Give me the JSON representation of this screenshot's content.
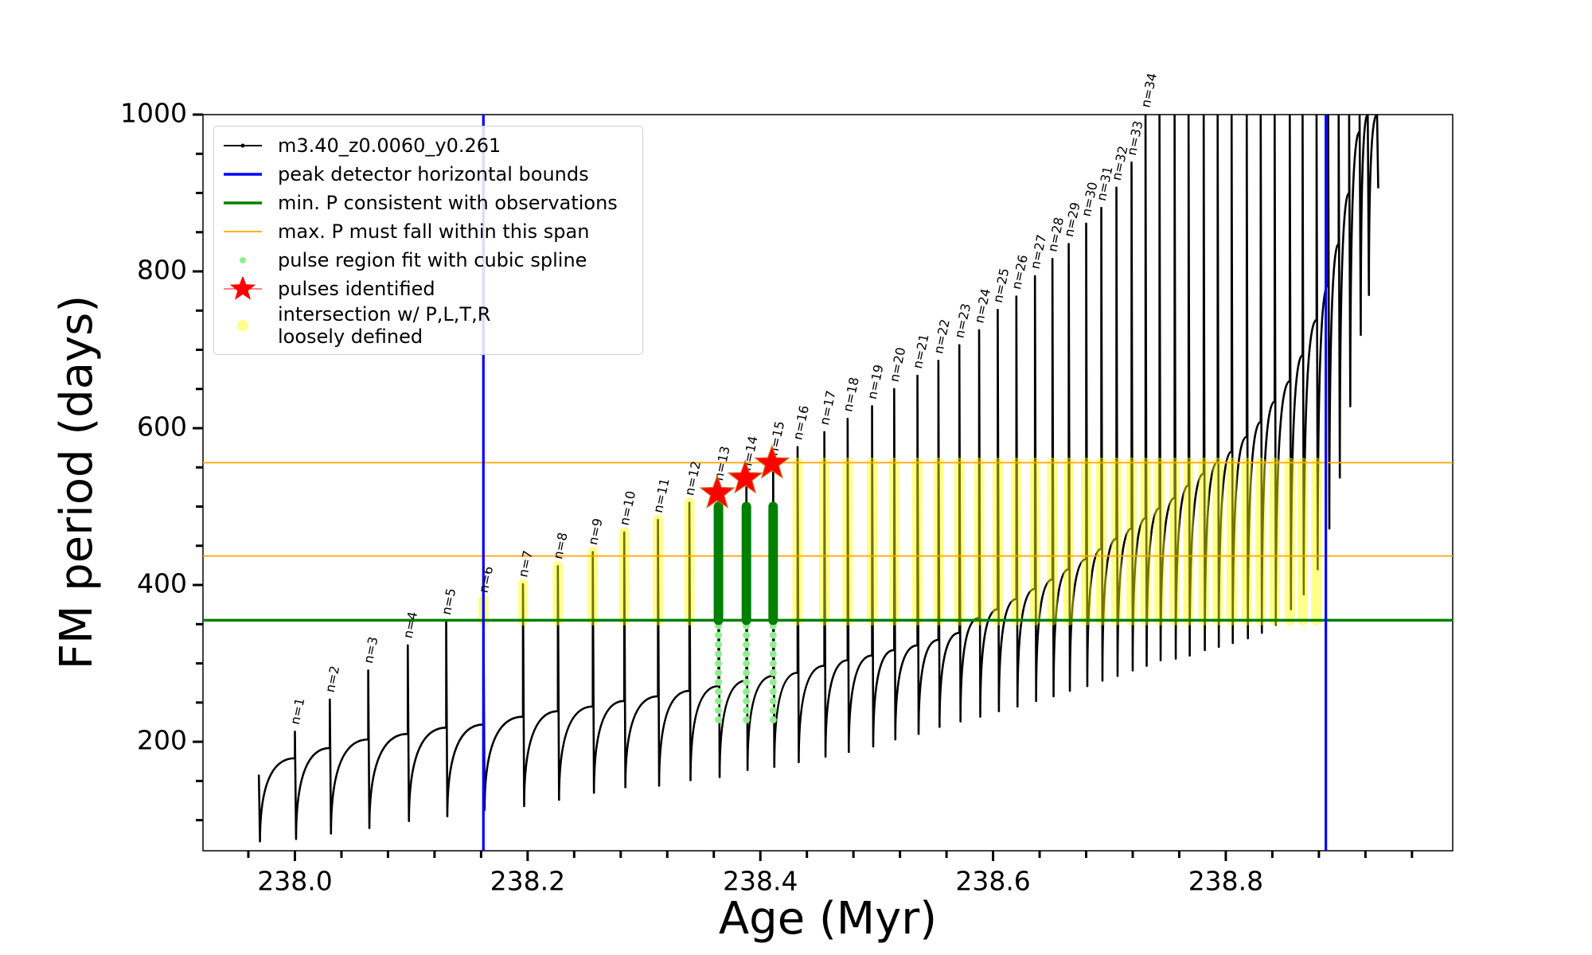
{
  "chart_data": {
    "type": "line",
    "xlabel": "Age (Myr)",
    "ylabel": "FM period (days)",
    "xlim": [
      237.921,
      238.995
    ],
    "ylim": [
      61,
      1000
    ],
    "xticks": [
      {
        "value": 238.0,
        "label": "238.0"
      },
      238.2,
      238.4,
      238.6,
      238.8
    ],
    "yticks": [
      200,
      400,
      600,
      800,
      1000
    ],
    "xminorticks": [
      237.96,
      238.04,
      238.08,
      238.12,
      238.16,
      238.24,
      238.28,
      238.32,
      238.36,
      238.44,
      238.48,
      238.52,
      238.56,
      238.64,
      238.68,
      238.72,
      238.76,
      238.84,
      238.88,
      238.92,
      238.96
    ],
    "yminorticks": [
      100,
      150,
      250,
      300,
      350,
      450,
      500,
      550,
      650,
      700,
      750,
      850,
      900,
      950
    ],
    "legend": "upper left",
    "series": [
      {
        "name": "m3.40_z0.0060_y0.261",
        "type": "line",
        "color": "#000000",
        "x": [
          237.969,
          237.97,
          238.0,
          238.0,
          238.001,
          238.03,
          238.03,
          238.031,
          238.063,
          238.063,
          238.064,
          238.097,
          238.097,
          238.098,
          238.13,
          238.13,
          238.131,
          238.162,
          238.162,
          238.163,
          238.196,
          238.196,
          238.197,
          238.226,
          238.226,
          238.227,
          238.256,
          238.256,
          238.257,
          238.283,
          238.283,
          238.284,
          238.312,
          238.312,
          238.313,
          238.339,
          238.339,
          238.34,
          238.364,
          238.364,
          238.365,
          238.388,
          238.388,
          238.389,
          238.411,
          238.411,
          238.412,
          238.432,
          238.432,
          238.433,
          238.455,
          238.455,
          238.456,
          238.475,
          238.475,
          238.476,
          238.496,
          238.496,
          238.497,
          238.515,
          238.515,
          238.516,
          238.535,
          238.535,
          238.536,
          238.553,
          238.553,
          238.554,
          238.571,
          238.571,
          238.572,
          238.588,
          238.588,
          238.589,
          238.604,
          238.604,
          238.605,
          238.62,
          238.62,
          238.621,
          238.636,
          238.636,
          238.637,
          238.651,
          238.651,
          238.652,
          238.665,
          238.665,
          238.666,
          238.68,
          238.68,
          238.681,
          238.693,
          238.693,
          238.694,
          238.706,
          238.706,
          238.707,
          238.719,
          238.719,
          238.72,
          238.731,
          238.731,
          238.732,
          238.743,
          238.743,
          238.744,
          238.756,
          238.756,
          238.757,
          238.768,
          238.768,
          238.769,
          238.781,
          238.781,
          238.782,
          238.793,
          238.793,
          238.794,
          238.805,
          238.805,
          238.806,
          238.818,
          238.818,
          238.819,
          238.83,
          238.83,
          238.831,
          238.842,
          238.842,
          238.843,
          238.855,
          238.855,
          238.856,
          238.866,
          238.866,
          238.867,
          238.878,
          238.878,
          238.879,
          238.888,
          238.888,
          238.889,
          238.897,
          238.897,
          238.898,
          238.906,
          238.906,
          238.907,
          238.915,
          238.915,
          238.916,
          238.922,
          238.922,
          238.923,
          238.93,
          238.93,
          238.931
        ],
        "values": [
          158,
          73,
          179,
          213,
          76,
          192,
          254,
          83,
          203,
          291,
          90,
          210,
          323,
          99,
          218,
          353,
          105,
          222,
          381,
          113,
          232,
          401,
          118,
          239,
          424,
          126,
          245,
          442,
          135,
          252,
          467,
          142,
          258,
          483,
          144,
          265,
          505,
          151,
          271,
          524,
          155,
          278,
          537,
          164,
          284,
          556,
          168,
          288,
          576,
          174,
          297,
          595,
          181,
          304,
          612,
          187,
          310,
          628,
          194,
          317,
          650,
          203,
          323,
          667,
          210,
          330,
          686,
          219,
          339,
          706,
          226,
          358,
          725,
          232,
          369,
          751,
          239,
          382,
          768,
          245,
          395,
          794,
          252,
          407,
          816,
          258,
          420,
          835,
          265,
          433,
          861,
          271,
          446,
          881,
          278,
          459,
          907,
          284,
          472,
          939,
          291,
          485,
          1000,
          297,
          498,
          1000,
          304,
          511,
          1000,
          306,
          527,
          1000,
          310,
          542,
          1000,
          317,
          557,
          1000,
          321,
          570,
          1000,
          326,
          589,
          1000,
          332,
          608,
          1000,
          339,
          634,
          1000,
          349,
          660,
          1000,
          369,
          693,
          1000,
          388,
          738,
          1000,
          420,
          783,
          1000,
          472,
          835,
          1000,
          537,
          900,
          1000,
          628,
          978,
          1000,
          719,
          1000,
          1000,
          770,
          1000,
          1000,
          906
        ]
      },
      {
        "name": "peak detector horizontal bounds",
        "type": "vline",
        "color": "#0000ff",
        "x": [
          238.162,
          238.886
        ]
      },
      {
        "name": "min. P consistent with observations",
        "type": "hline",
        "color": "#008000",
        "values": [
          355
        ]
      },
      {
        "name": "max. P must fall within this span",
        "type": "hline",
        "color": "#ffa500",
        "values": [
          437,
          556
        ]
      },
      {
        "name": "pulse region fit with cubic spline",
        "type": "scatter",
        "color": "#90ee90",
        "x": [
          238.364,
          238.364,
          238.364,
          238.364,
          238.364,
          238.364,
          238.364,
          238.364,
          238.364,
          238.364,
          238.364,
          238.388,
          238.388,
          238.388,
          238.388,
          238.388,
          238.388,
          238.388,
          238.388,
          238.388,
          238.388,
          238.388,
          238.411,
          238.411,
          238.411,
          238.411,
          238.411,
          238.411,
          238.411,
          238.411,
          238.411,
          238.411,
          238.411
        ],
        "values": [
          228,
          240,
          252,
          264,
          276,
          288,
          300,
          312,
          324,
          336,
          348,
          228,
          240,
          252,
          264,
          276,
          288,
          300,
          312,
          324,
          336,
          348,
          228,
          240,
          252,
          264,
          276,
          288,
          300,
          312,
          324,
          336,
          348
        ]
      },
      {
        "name": "pulses identified",
        "type": "star",
        "color": "#ff0000",
        "x": [
          238.363,
          238.387,
          238.41
        ],
        "values": [
          517,
          536,
          555
        ]
      },
      {
        "name": "intersection w/ P,L,T,R\nloosely defined",
        "type": "column",
        "color": "#ffff00",
        "x": [
          238.162,
          238.196,
          238.226,
          238.256,
          238.283,
          238.312,
          238.339,
          238.432,
          238.455,
          238.475,
          238.496,
          238.515,
          238.535,
          238.553,
          238.571,
          238.588,
          238.604,
          238.62,
          238.636,
          238.651,
          238.665,
          238.68,
          238.693,
          238.706,
          238.719,
          238.731,
          238.743,
          238.756,
          238.768,
          238.781,
          238.793,
          238.805,
          238.818,
          238.83,
          238.842,
          238.855,
          238.866,
          238.878
        ],
        "low": [
          355,
          355,
          355,
          355,
          355,
          355,
          355,
          355,
          355,
          355,
          355,
          355,
          355,
          355,
          355,
          355,
          355,
          355,
          355,
          355,
          355,
          355,
          355,
          355,
          355,
          355,
          355,
          355,
          355,
          355,
          355,
          355,
          355,
          355,
          355,
          355,
          355,
          355
        ],
        "values": [
          381,
          401,
          424,
          442,
          467,
          483,
          505,
          556,
          556,
          556,
          556,
          556,
          556,
          556,
          556,
          556,
          556,
          556,
          556,
          556,
          556,
          556,
          556,
          556,
          556,
          556,
          556,
          556,
          556,
          556,
          556,
          556,
          556,
          556,
          556,
          556,
          556,
          556
        ]
      }
    ],
    "selected_region": {
      "color": "#008000",
      "x": [
        238.364,
        238.388,
        238.411
      ],
      "low": [
        355,
        355,
        355
      ],
      "values": [
        500,
        500,
        500
      ]
    },
    "pulse_labels": [
      "n=1",
      "n=2",
      "n=3",
      "n=4",
      "n=5",
      "n=6",
      "n=7",
      "n=8",
      "n=9",
      "n=10",
      "n=11",
      "n=12",
      "n=13",
      "n=14",
      "n=15",
      "n=16",
      "n=17",
      "n=18",
      "n=19",
      "n=20",
      "n=21",
      "n=22",
      "n=23",
      "n=24",
      "n=25",
      "n=26",
      "n=27",
      "n=28",
      "n=29",
      "n=30",
      "n=31",
      "n=32",
      "n=33",
      "n=34"
    ]
  }
}
